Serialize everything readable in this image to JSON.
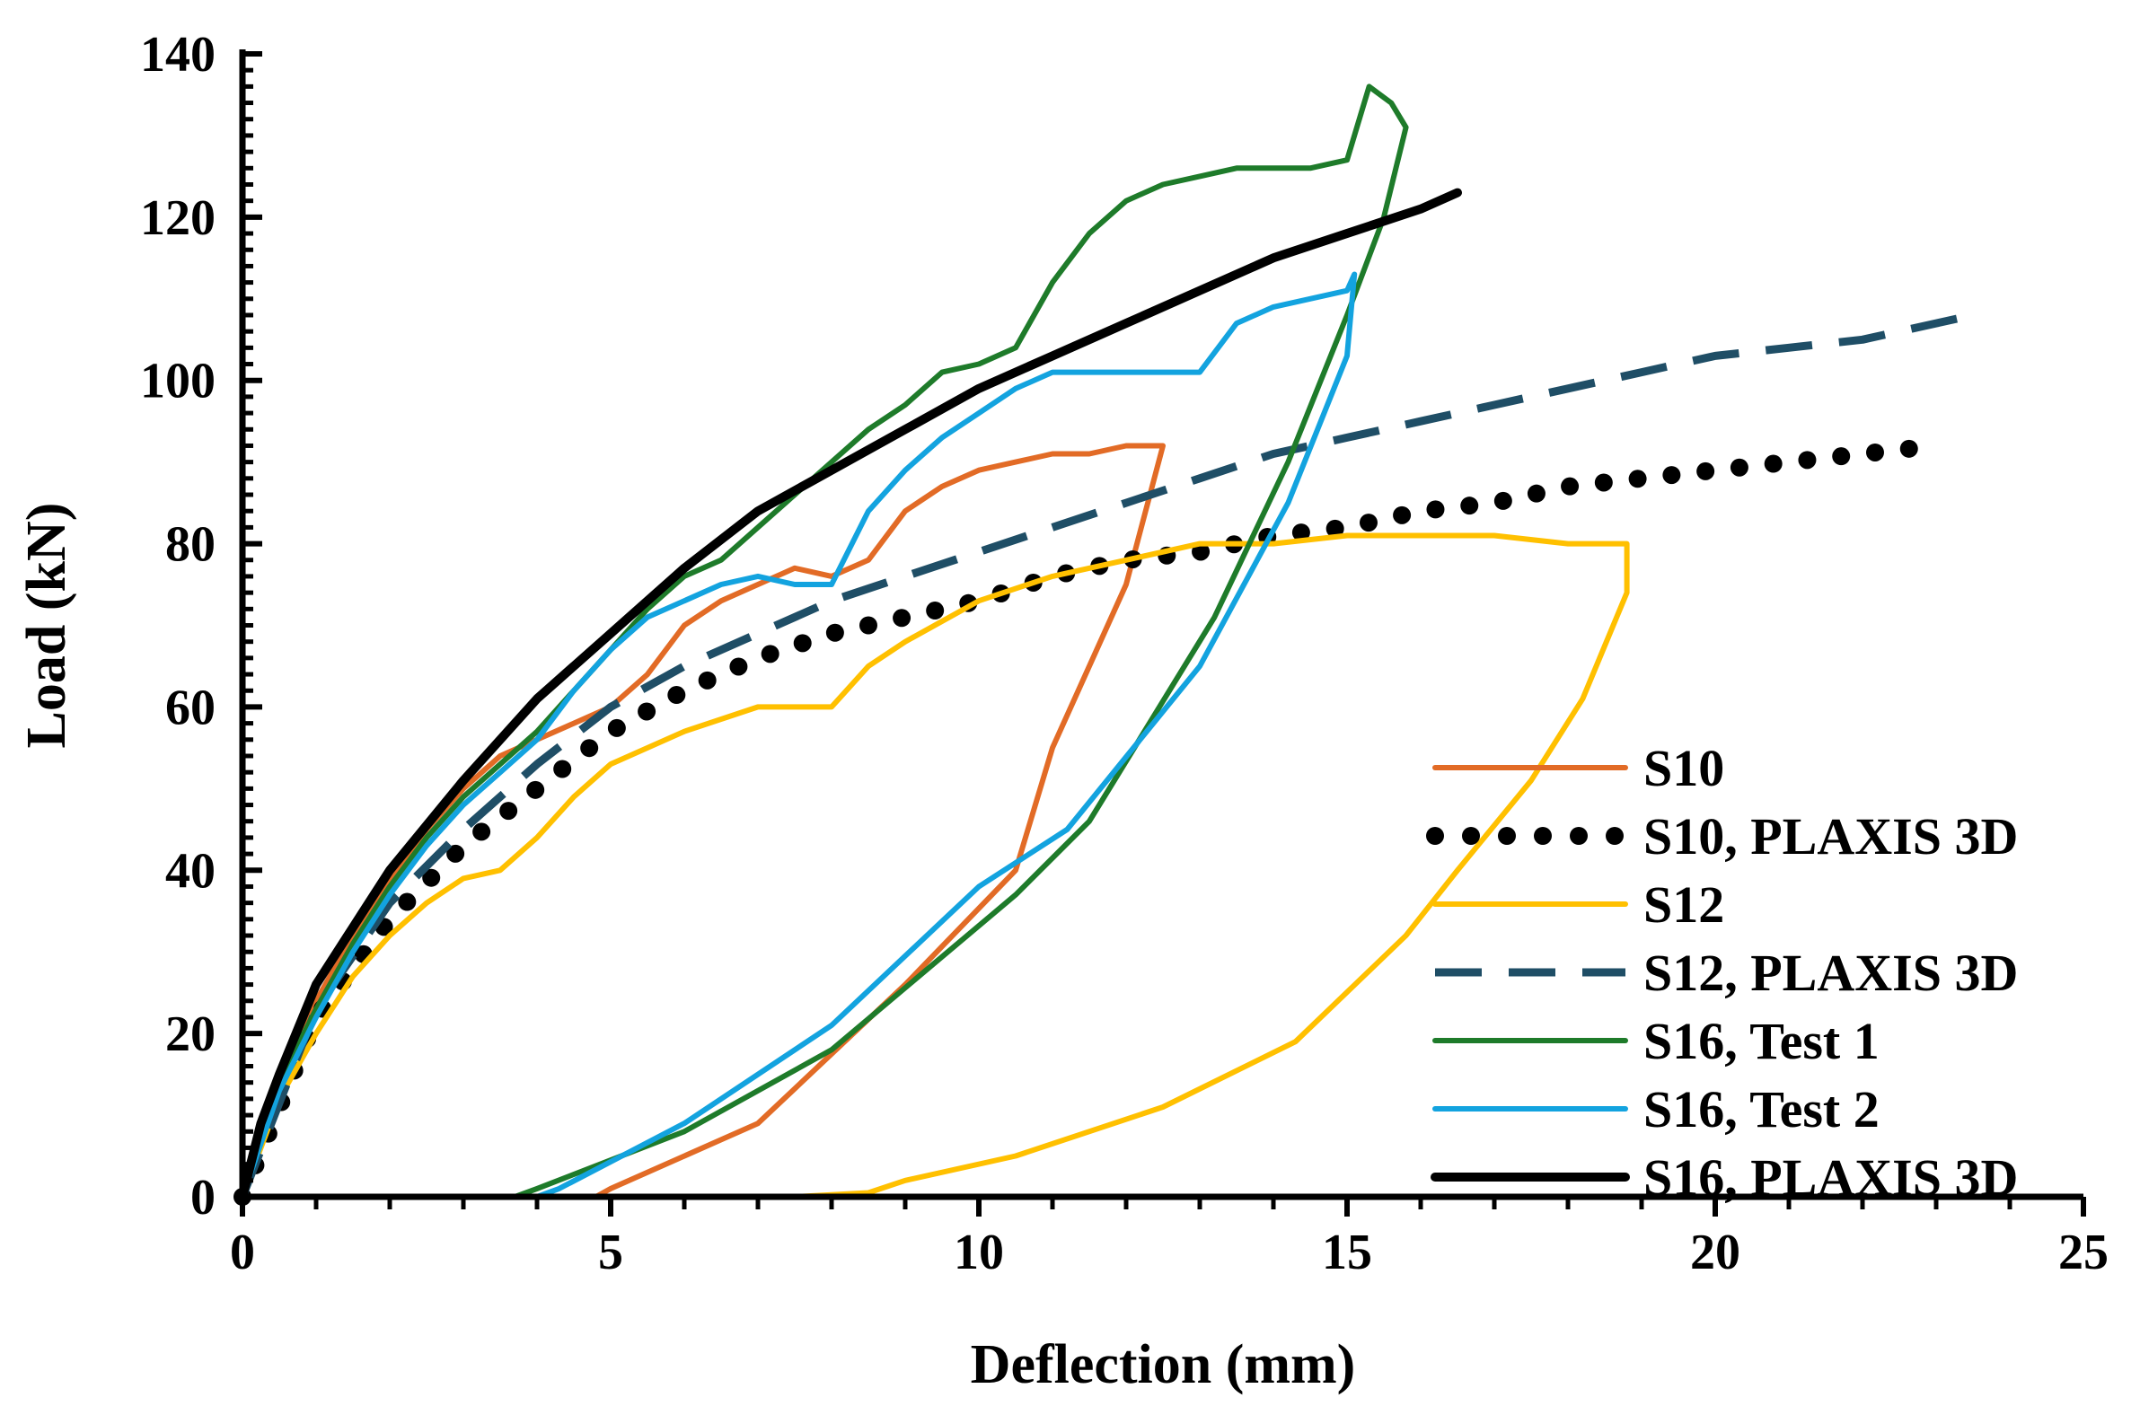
{
  "chart_data": {
    "type": "line",
    "title": "",
    "xlabel": "Deflection (mm)",
    "ylabel": "Load (kN)",
    "xlim": [
      0,
      25
    ],
    "ylim": [
      0,
      140
    ],
    "xticks": [
      0,
      5,
      10,
      15,
      20,
      25
    ],
    "yticks": [
      0,
      20,
      40,
      60,
      80,
      100,
      120,
      140
    ],
    "legend_position": "bottom-right",
    "series": [
      {
        "name": "S10",
        "color": "#E26B26",
        "style": "solid",
        "x": [
          0,
          0.5,
          1,
          1.5,
          2,
          2.5,
          3,
          3.5,
          4,
          4.5,
          5,
          5.5,
          6,
          6.5,
          7,
          7.5,
          8,
          8.5,
          9,
          9.5,
          10,
          10.5,
          11,
          11.5,
          12,
          12.5,
          12,
          11,
          10.5,
          9,
          7,
          5,
          4.8
        ],
        "y": [
          0,
          14,
          24,
          32,
          39,
          45,
          50,
          54,
          56,
          58,
          60,
          64,
          70,
          73,
          75,
          77,
          76,
          78,
          84,
          87,
          89,
          90,
          91,
          91,
          92,
          92,
          75,
          55,
          40,
          26,
          9,
          1,
          0
        ]
      },
      {
        "name": "S10, PLAXIS 3D",
        "color": "#000000",
        "style": "dotted",
        "x": [
          0,
          1,
          2,
          3,
          4,
          5,
          6,
          7,
          8,
          9,
          10,
          11,
          12,
          13,
          14,
          15,
          16,
          17,
          18,
          19,
          20,
          21,
          22,
          23
        ],
        "y": [
          0,
          22,
          34,
          43,
          50,
          57,
          62,
          66,
          69,
          71,
          73,
          76,
          78,
          79,
          81,
          82,
          84,
          85,
          87,
          88,
          89,
          90,
          91,
          92
        ]
      },
      {
        "name": "S12",
        "color": "#FFC000",
        "style": "solid",
        "x": [
          0,
          0.5,
          1,
          1.5,
          2,
          2.5,
          3,
          3.5,
          4,
          4.5,
          5,
          6,
          7,
          8,
          8.5,
          9,
          10,
          11,
          12,
          13,
          14,
          15,
          16,
          17,
          18,
          18.8,
          18.8,
          18.2,
          17.5,
          16.5,
          15.8,
          14.3,
          12.5,
          10.5,
          9,
          8.5,
          7.5
        ],
        "y": [
          0,
          12,
          20,
          27,
          32,
          36,
          39,
          40,
          44,
          49,
          53,
          57,
          60,
          60,
          65,
          68,
          73,
          76,
          78,
          80,
          80,
          81,
          81,
          81,
          80,
          80,
          74,
          61,
          51,
          40,
          32,
          19,
          11,
          5,
          2,
          0.5,
          0
        ]
      },
      {
        "name": "S12, PLAXIS 3D",
        "color": "#1F4E66",
        "style": "dashed",
        "x": [
          0,
          1,
          2,
          3,
          4,
          5,
          6,
          7,
          8,
          9,
          10,
          11,
          12,
          13,
          14,
          15,
          16,
          17,
          18,
          19,
          20,
          21,
          22,
          23,
          23.5
        ],
        "y": [
          0,
          23,
          36,
          45,
          53,
          60,
          65,
          69,
          73,
          76,
          79,
          82,
          85,
          88,
          91,
          93,
          95,
          97,
          99,
          101,
          103,
          104,
          105,
          107,
          108
        ]
      },
      {
        "name": "S16, Test 1",
        "color": "#1E7B2A",
        "style": "solid",
        "x": [
          0,
          0.5,
          1,
          1.5,
          2,
          2.5,
          3,
          3.5,
          4,
          4.5,
          5,
          5.5,
          6,
          6.5,
          7,
          7.5,
          8,
          8.5,
          9,
          9.5,
          10,
          10.5,
          11,
          11.5,
          12,
          12.5,
          13,
          13.5,
          14,
          14.5,
          15,
          15.3,
          15.6,
          15.8,
          15.5,
          15,
          14.2,
          13.2,
          11.5,
          10.5,
          8,
          6,
          4,
          3.7
        ],
        "y": [
          0,
          14,
          23,
          31,
          38,
          44,
          49,
          53,
          57,
          62,
          67,
          72,
          76,
          78,
          82,
          86,
          90,
          94,
          97,
          101,
          102,
          104,
          112,
          118,
          122,
          124,
          125,
          126,
          126,
          126,
          127,
          136,
          134,
          131,
          120,
          108,
          90,
          71,
          46,
          37,
          18,
          8,
          1,
          0
        ]
      },
      {
        "name": "S16, Test 2",
        "color": "#13A3DF",
        "style": "solid",
        "x": [
          0,
          0.5,
          1,
          1.5,
          2,
          2.5,
          3,
          3.5,
          4,
          4.5,
          5,
          5.5,
          6,
          6.5,
          7,
          7.5,
          8,
          8.5,
          9,
          9.5,
          10,
          10.5,
          11,
          11.5,
          12,
          12.5,
          13,
          13.5,
          14,
          14.5,
          15,
          15.1,
          15,
          14.2,
          13,
          11.2,
          10,
          8,
          6,
          4.3,
          4
        ],
        "y": [
          0,
          13,
          22,
          30,
          37,
          43,
          48,
          52,
          56,
          62,
          67,
          71,
          73,
          75,
          76,
          75,
          75,
          84,
          89,
          93,
          96,
          99,
          101,
          101,
          101,
          101,
          101,
          107,
          109,
          110,
          111,
          113,
          103,
          85,
          65,
          45,
          38,
          21,
          9,
          1,
          0
        ]
      },
      {
        "name": "S16, PLAXIS 3D",
        "color": "#000000",
        "style": "solid",
        "x": [
          0,
          0.25,
          0.5,
          1,
          1.5,
          2,
          3,
          4,
          5,
          6,
          7,
          8,
          9,
          10,
          11,
          12,
          13,
          14,
          15,
          16,
          16.5
        ],
        "y": [
          0,
          9,
          15,
          26,
          33,
          40,
          51,
          61,
          69,
          77,
          84,
          89,
          94,
          99,
          103,
          107,
          111,
          115,
          118,
          121,
          123
        ]
      }
    ]
  }
}
